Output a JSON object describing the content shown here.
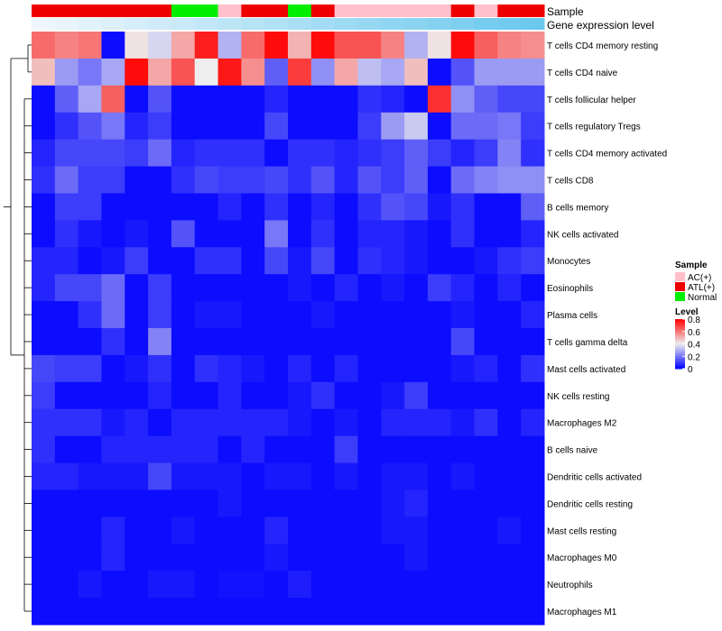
{
  "chart_data": {
    "type": "heatmap",
    "annotation_tracks": [
      {
        "name": "Sample",
        "values": [
          "ATL(+)",
          "ATL(+)",
          "ATL(+)",
          "ATL(+)",
          "ATL(+)",
          "ATL(+)",
          "Normal",
          "Normal",
          "AC(+)",
          "ATL(+)",
          "ATL(+)",
          "Normal",
          "ATL(+)",
          "AC(+)",
          "AC(+)",
          "AC(+)",
          "AC(+)",
          "AC(+)",
          "ATL(+)",
          "AC(+)",
          "ATL(+)",
          "ATL(+)"
        ]
      },
      {
        "name": "Gene expression level",
        "values": [
          0.02,
          0.06,
          0.1,
          0.14,
          0.18,
          0.22,
          0.26,
          0.3,
          0.34,
          0.38,
          0.42,
          0.46,
          0.5,
          0.54,
          0.58,
          0.62,
          0.66,
          0.7,
          0.74,
          0.78,
          0.82,
          0.86
        ]
      }
    ],
    "rows": [
      "T cells CD4 memory resting",
      "T cells CD4 naive",
      "T cells follicular helper",
      "T cells regulatory  Tregs",
      "T cells CD4 memory activated",
      "T cells CD8",
      "B cells memory",
      "NK cells activated",
      "Monocytes",
      "Eosinophils",
      "Plasma cells",
      "T cells gamma delta",
      "Mast cells activated",
      "NK cells resting",
      "Macrophages M2",
      "B cells naive",
      "Dendritic cells activated",
      "Dendritic cells resting",
      "Mast cells resting",
      "Macrophages M0",
      "Neutrophils",
      "Macrophages M1"
    ],
    "values": [
      [
        0.62,
        0.58,
        0.6,
        0.02,
        0.42,
        0.36,
        0.52,
        0.75,
        0.3,
        0.62,
        0.78,
        0.5,
        0.78,
        0.66,
        0.66,
        0.58,
        0.3,
        0.42,
        0.78,
        0.64,
        0.58,
        0.56
      ],
      [
        0.48,
        0.26,
        0.2,
        0.28,
        0.78,
        0.52,
        0.66,
        0.4,
        0.76,
        0.56,
        0.16,
        0.7,
        0.24,
        0.52,
        0.32,
        0.28,
        0.48,
        0.02,
        0.14,
        0.26,
        0.26,
        0.26
      ],
      [
        0.02,
        0.16,
        0.28,
        0.64,
        0.02,
        0.14,
        0.02,
        0.02,
        0.02,
        0.02,
        0.06,
        0.02,
        0.02,
        0.02,
        0.08,
        0.06,
        0.02,
        0.72,
        0.24,
        0.16,
        0.12,
        0.12
      ],
      [
        0.02,
        0.08,
        0.14,
        0.2,
        0.06,
        0.1,
        0.02,
        0.02,
        0.02,
        0.02,
        0.12,
        0.02,
        0.02,
        0.02,
        0.1,
        0.26,
        0.34,
        0.02,
        0.18,
        0.18,
        0.2,
        0.1
      ],
      [
        0.06,
        0.12,
        0.12,
        0.12,
        0.1,
        0.18,
        0.06,
        0.08,
        0.08,
        0.08,
        0.02,
        0.08,
        0.08,
        0.06,
        0.08,
        0.1,
        0.16,
        0.1,
        0.06,
        0.1,
        0.22,
        0.08
      ],
      [
        0.08,
        0.18,
        0.1,
        0.1,
        0.02,
        0.02,
        0.08,
        0.12,
        0.1,
        0.1,
        0.12,
        0.08,
        0.14,
        0.06,
        0.14,
        0.1,
        0.16,
        0.02,
        0.18,
        0.22,
        0.24,
        0.24
      ],
      [
        0.02,
        0.1,
        0.1,
        0.02,
        0.02,
        0.02,
        0.02,
        0.02,
        0.06,
        0.02,
        0.08,
        0.02,
        0.06,
        0.02,
        0.08,
        0.14,
        0.12,
        0.04,
        0.08,
        0.02,
        0.02,
        0.16
      ],
      [
        0.02,
        0.08,
        0.04,
        0.02,
        0.04,
        0.02,
        0.14,
        0.02,
        0.02,
        0.02,
        0.2,
        0.02,
        0.08,
        0.02,
        0.06,
        0.06,
        0.04,
        0.02,
        0.08,
        0.02,
        0.02,
        0.06
      ],
      [
        0.06,
        0.06,
        0.02,
        0.04,
        0.1,
        0.02,
        0.02,
        0.08,
        0.08,
        0.02,
        0.12,
        0.04,
        0.12,
        0.02,
        0.08,
        0.06,
        0.04,
        0.02,
        0.02,
        0.04,
        0.08,
        0.1
      ],
      [
        0.06,
        0.12,
        0.12,
        0.18,
        0.02,
        0.1,
        0.02,
        0.02,
        0.02,
        0.02,
        0.02,
        0.04,
        0.02,
        0.06,
        0.02,
        0.04,
        0.02,
        0.1,
        0.06,
        0.02,
        0.06,
        0.02
      ],
      [
        0.02,
        0.02,
        0.08,
        0.18,
        0.02,
        0.1,
        0.02,
        0.04,
        0.04,
        0.02,
        0.02,
        0.02,
        0.04,
        0.02,
        0.02,
        0.02,
        0.02,
        0.02,
        0.04,
        0.02,
        0.02,
        0.06
      ],
      [
        0.02,
        0.02,
        0.02,
        0.08,
        0.02,
        0.22,
        0.02,
        0.02,
        0.02,
        0.02,
        0.02,
        0.02,
        0.02,
        0.02,
        0.02,
        0.02,
        0.02,
        0.02,
        0.12,
        0.02,
        0.02,
        0.02
      ],
      [
        0.12,
        0.1,
        0.1,
        0.02,
        0.04,
        0.08,
        0.02,
        0.08,
        0.06,
        0.04,
        0.02,
        0.06,
        0.02,
        0.06,
        0.02,
        0.02,
        0.02,
        0.02,
        0.04,
        0.06,
        0.02,
        0.08
      ],
      [
        0.1,
        0.02,
        0.02,
        0.02,
        0.02,
        0.06,
        0.02,
        0.02,
        0.06,
        0.02,
        0.02,
        0.04,
        0.08,
        0.02,
        0.02,
        0.04,
        0.1,
        0.02,
        0.02,
        0.02,
        0.02,
        0.02
      ],
      [
        0.08,
        0.08,
        0.08,
        0.04,
        0.06,
        0.02,
        0.06,
        0.06,
        0.06,
        0.06,
        0.06,
        0.04,
        0.02,
        0.04,
        0.02,
        0.06,
        0.06,
        0.06,
        0.04,
        0.08,
        0.02,
        0.06
      ],
      [
        0.08,
        0.02,
        0.02,
        0.06,
        0.06,
        0.06,
        0.06,
        0.06,
        0.02,
        0.06,
        0.02,
        0.02,
        0.02,
        0.1,
        0.02,
        0.02,
        0.02,
        0.02,
        0.02,
        0.02,
        0.02,
        0.02
      ],
      [
        0.06,
        0.06,
        0.04,
        0.04,
        0.04,
        0.12,
        0.04,
        0.04,
        0.04,
        0.02,
        0.04,
        0.04,
        0.02,
        0.04,
        0.02,
        0.04,
        0.04,
        0.02,
        0.04,
        0.02,
        0.02,
        0.02
      ],
      [
        0.02,
        0.02,
        0.02,
        0.02,
        0.02,
        0.02,
        0.02,
        0.02,
        0.04,
        0.02,
        0.02,
        0.02,
        0.02,
        0.02,
        0.02,
        0.04,
        0.06,
        0.02,
        0.02,
        0.02,
        0.02,
        0.02
      ],
      [
        0.02,
        0.02,
        0.02,
        0.06,
        0.02,
        0.02,
        0.04,
        0.02,
        0.02,
        0.02,
        0.06,
        0.02,
        0.02,
        0.02,
        0.02,
        0.04,
        0.04,
        0.02,
        0.02,
        0.02,
        0.04,
        0.02
      ],
      [
        0.02,
        0.02,
        0.02,
        0.06,
        0.02,
        0.02,
        0.02,
        0.02,
        0.02,
        0.02,
        0.04,
        0.02,
        0.02,
        0.02,
        0.02,
        0.02,
        0.04,
        0.02,
        0.02,
        0.02,
        0.02,
        0.02
      ],
      [
        0.02,
        0.02,
        0.04,
        0.02,
        0.02,
        0.04,
        0.04,
        0.02,
        0.03,
        0.03,
        0.02,
        0.05,
        0.02,
        0.02,
        0.02,
        0.02,
        0.02,
        0.02,
        0.02,
        0.02,
        0.02,
        0.02
      ],
      [
        0.02,
        0.02,
        0.02,
        0.02,
        0.02,
        0.02,
        0.02,
        0.02,
        0.02,
        0.02,
        0.02,
        0.02,
        0.02,
        0.02,
        0.02,
        0.02,
        0.02,
        0.02,
        0.02,
        0.02,
        0.02,
        0.02
      ]
    ],
    "color_scale": {
      "min": 0,
      "max": 0.8,
      "low": "#0000ff",
      "mid": "#eeeeee",
      "high": "#ff0000",
      "midpoint": 0.4
    },
    "expression_color_scale": {
      "low": "#eef6fb",
      "high": "#6bc9ee"
    },
    "legend_sample": {
      "title": "Sample",
      "items": [
        {
          "label": "AC(+)",
          "color": "#ffc0cb"
        },
        {
          "label": "ATL(+)",
          "color": "#ee0000"
        },
        {
          "label": "Normal",
          "color": "#00ee00"
        }
      ]
    },
    "legend_level": {
      "title": "Level",
      "ticks": [
        "0.8",
        "0.6",
        "0.4",
        "0.2",
        "0"
      ],
      "tick_values": [
        0.8,
        0.6,
        0.4,
        0.2,
        0
      ]
    },
    "row_dendrogram": true
  }
}
